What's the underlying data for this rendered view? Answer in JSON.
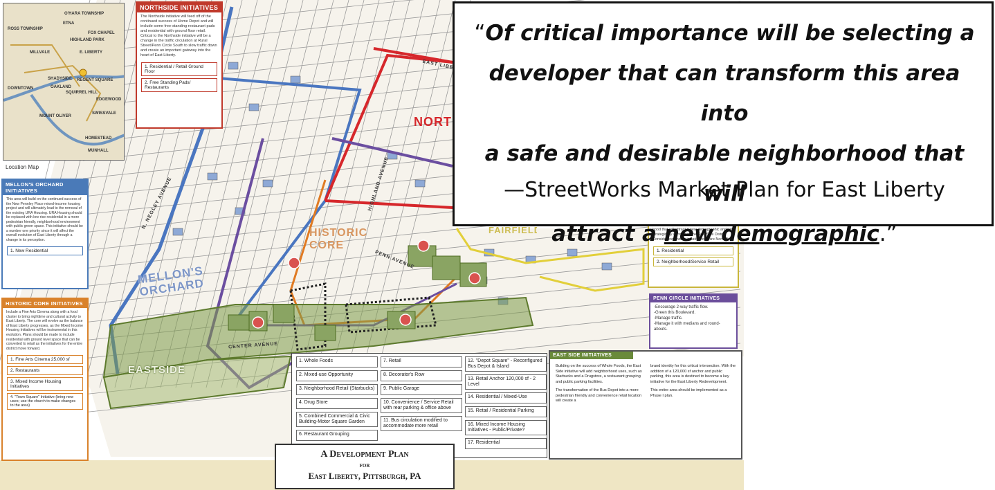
{
  "quote": {
    "open": "“",
    "line1": "Of critical importance will be selecting a",
    "line2": "developer that can transform this area into",
    "line3": "a safe and desirable neighborhood that will",
    "line4a": "attract a ",
    "line4u": "new demographic",
    "line4b": ".”",
    "attribution": "—StreetWorks Market Plan for East Liberty"
  },
  "location_map": {
    "caption": "Location Map",
    "places": [
      "O'HARA TOWNSHIP",
      "ROSS TOWNSHIP",
      "FOX CHAPEL",
      "ETNA",
      "MILLVALE",
      "HIGHLAND PARK",
      "E. LIBERTY",
      "DOWNTOWN",
      "OAKLAND",
      "SHADYSIDE",
      "REGENT SQUARE",
      "SQUIRREL HILL",
      "EDGEWOOD",
      "SWISSVALE",
      "MOUNT OLIVER",
      "HOMESTEAD",
      "MUNHALL"
    ]
  },
  "northside": {
    "title": "NORTHSIDE INITIATIVES",
    "body": "The Northside initiative will feed off of the continued success of Home Depot and will include some free-standing restaurant pads and residential with ground floor retail. Critical to the Northside initiative will be a change in the traffic circulation at Rural Street/Penn Circle South to slow traffic down and create an important gateway into the heart of East Liberty.",
    "items": [
      "1. Residential / Retail Ground Floor",
      "2. Free Standing Pads/ Restaurants"
    ]
  },
  "mellons": {
    "title": "MELLON'S ORCHARD INITIATIVES",
    "body": "This area will build on the continued success of the New Pennley Place mixed-income housing project and will ultimately lead to the removal of the existing URA Housing. URA Housing should be replaced with low-rise residential in a more pedestrian friendly, neighborhood environment with public green space. This initiative should be a number one priority since it will affect the overall evolution of East Liberty through a change in its perception.",
    "items": [
      "1. New Residential"
    ]
  },
  "historic": {
    "title": "HISTORIC CORE INITIATIVES",
    "body": "Include a Fine Arts Cinema along with a food cluster to bring nighttime and cultural activity to East Liberty. The core will evolve as the balance of East Liberty progresses, as the Mixed Income Housing Initiatives will be instrumental in this evolution. Plans should be made to include residential with ground level space that can be converted to retail as the initiatives for the entire district move forward.",
    "items": [
      "1. Fine Arts Cinema 25,000 sf",
      "2. Restaurants",
      "3. Mixed Income Housing Initiatives",
      "4. \"Town Square\" Initiative (bring new uses; use the church to make changes to the area)"
    ]
  },
  "fairfield": {
    "body": "hood that will attract a new demographic and will strategically connect to the East Side District. Consider expanding initiative to entire North End.",
    "items": [
      "1. Residential",
      "2. Neighborhood/Service Retail"
    ]
  },
  "penn_circle": {
    "title": "PENN CIRCLE INITIATIVES",
    "items": [
      "-Encourage 2-way traffic flow.",
      "-Green this Boulevard.",
      "-Manage traffic.",
      "-Manage it with medians and round-abouts."
    ]
  },
  "east_side": {
    "title": "EAST SIDE INITIATIVES",
    "col1": "Building on the success of Whole Foods, the East Side initiative will add neighborhood uses, such as Starbucks and a Drugstore, a restaurant grouping and public parking facilities.",
    "col1b": "The transformation of the Bus Depot into a more pedestrian friendly and convenience retail location will create a",
    "col2": "brand identity for this critical intersection. With the addition of a 120,000 sf anchor and public parking, this area is destined to become a key initiative for the East Liberty Redevelopment.",
    "col2b": "This entire area should be implemented as a Phase I plan."
  },
  "legend": {
    "col1": [
      "1. Whole Foods",
      "2. Mixed-use Opportunity",
      "3. Neighborhood Retail (Starbucks)",
      "4. Drug Store",
      "5. Combined Commercial & Civic Building-Motor Square Garden",
      "6. Restaurant Grouping"
    ],
    "col2": [
      "7. Retail",
      "8. Decorator's Row",
      "9. Public Garage",
      "10. Convenience / Service Retail with rear parking & office above",
      "11. Bus circulation modified to accommodate more retail"
    ],
    "col3": [
      "12. \"Depot Square\" - Reconfigured Bus Depot & Island",
      "13. Retail Anchor 120,000 sf - 2 Level",
      "14. Residential / Mixed-Use",
      "15. Retail / Residential Parking",
      "16. Mixed Income Housing Initiatives - Public/Private?",
      "17. Residential"
    ]
  },
  "plan_title": {
    "line1": "A Development Plan",
    "line2": "for",
    "line3": "East Liberty, Pittsburgh, PA"
  },
  "map_labels": {
    "mellons": "MELLON'S ORCHARD",
    "historic": "HISTORIC CORE",
    "eastside": "EASTSIDE",
    "north": "NORTH",
    "fairfield": "FAIRFIELD",
    "east_liberty_st": "EAST LIBERTY",
    "penn_ave": "PENN AVENUE",
    "center_ave": "CENTER AVENUE",
    "negley": "N. NEGLEY AVENUE",
    "highland": "HIGHLAND AVENUE"
  },
  "colors": {
    "north": "#d6272b",
    "mellons": "#4a76c0",
    "historic": "#e07a22",
    "east": "#6d8c3c",
    "penn": "#6b4ea0",
    "fairfield": "#e2cf3a"
  }
}
